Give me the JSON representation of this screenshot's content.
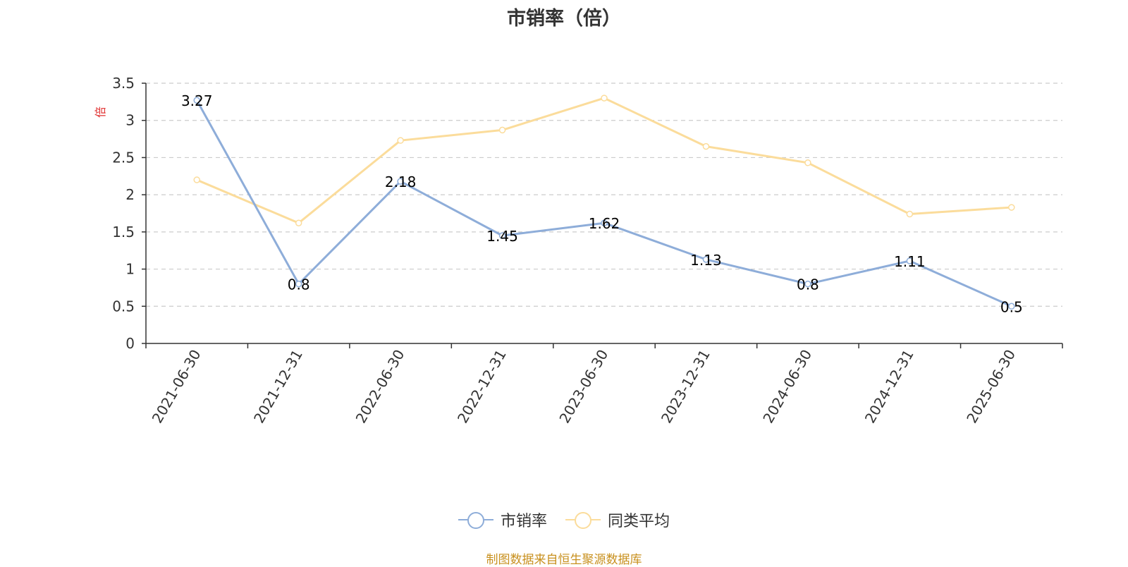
{
  "chart_data": {
    "type": "line",
    "title": "市销率（倍）",
    "ylabel": "倍",
    "xlabel": "",
    "categories": [
      "2021-06-30",
      "2021-12-31",
      "2022-06-30",
      "2022-12-31",
      "2023-06-30",
      "2023-12-31",
      "2024-06-30",
      "2024-12-31",
      "2025-06-30"
    ],
    "series": [
      {
        "name": "市销率",
        "color": "#8eadd9",
        "values": [
          3.27,
          0.8,
          2.18,
          1.45,
          1.62,
          1.13,
          0.8,
          1.11,
          0.5
        ],
        "data_labels": [
          "3.27",
          "0.8",
          "2.18",
          "1.45",
          "1.62",
          "1.13",
          "0.8",
          "1.11",
          "0.5"
        ]
      },
      {
        "name": "同类平均",
        "color": "#fbdc9b",
        "values": [
          2.2,
          1.62,
          2.73,
          2.87,
          3.3,
          2.65,
          2.43,
          1.74,
          1.83
        ]
      }
    ],
    "ylim": [
      0,
      3.5
    ],
    "yticks": [
      0,
      0.5,
      1,
      1.5,
      2,
      2.5,
      3,
      3.5
    ],
    "ytick_labels": [
      "0",
      "0.5",
      "1",
      "1.5",
      "2",
      "2.5",
      "3",
      "3.5"
    ],
    "grid": true,
    "legend_position": "bottom-center"
  },
  "legend": {
    "items": [
      {
        "label": "市销率",
        "color": "#8eadd9"
      },
      {
        "label": "同类平均",
        "color": "#fbdc9b"
      }
    ]
  },
  "source_note": "制图数据来自恒生聚源数据库",
  "colors": {
    "axis": "#333333",
    "grid": "#cccccc",
    "ylabel": "#e03030",
    "source": "#c8901e"
  }
}
